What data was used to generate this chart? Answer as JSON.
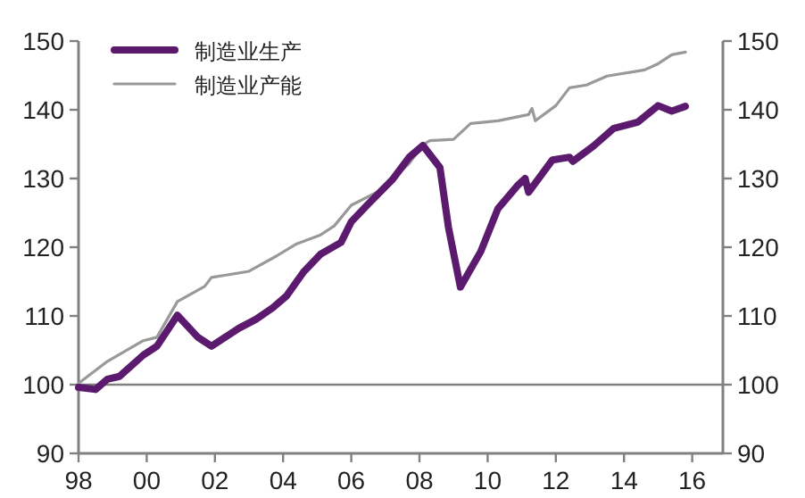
{
  "chart_data": {
    "type": "line",
    "legend": "top left",
    "grid": false,
    "line_style": "solid",
    "marker": "none",
    "xlim": [
      1998,
      2016.9
    ],
    "ylim": [
      90,
      150
    ],
    "y2lim": [
      90,
      150
    ],
    "xticks": [
      {
        "value": 1998,
        "label": "98"
      },
      {
        "value": 2000,
        "label": "00"
      },
      {
        "value": 2002,
        "label": "02"
      },
      {
        "value": 2004,
        "label": "04"
      },
      {
        "value": 2006,
        "label": "06"
      },
      {
        "value": 2008,
        "label": "08"
      },
      {
        "value": 2010,
        "label": "10"
      },
      {
        "value": 2012,
        "label": "12"
      },
      {
        "value": 2014,
        "label": "14"
      },
      {
        "value": 2016,
        "label": "16"
      }
    ],
    "yticks": [
      90,
      100,
      110,
      120,
      130,
      140,
      150
    ],
    "y2ticks": [
      90,
      100,
      110,
      120,
      130,
      140,
      150
    ],
    "ref_lines": [
      {
        "axis": "y",
        "value": 100,
        "color": "#808080"
      }
    ],
    "series": [
      {
        "name": "制造业生产",
        "color": "#5b1a6e",
        "x": [
          1998.0,
          1998.5,
          1998.85,
          1999.2,
          1999.9,
          2000.3,
          2000.9,
          2001.5,
          2001.9,
          2002.3,
          2002.7,
          2003.2,
          2003.7,
          2004.1,
          2004.6,
          2005.1,
          2005.7,
          2006.0,
          2006.5,
          2007.2,
          2007.7,
          2008.1,
          2008.6,
          2008.85,
          2009.2,
          2009.8,
          2010.3,
          2010.9,
          2011.1,
          2011.2,
          2011.9,
          2012.4,
          2012.5,
          2013.1,
          2013.7,
          2014.4,
          2015.0,
          2015.4,
          2015.8
        ],
        "values": [
          99.6,
          99.3,
          100.8,
          101.2,
          104.3,
          105.6,
          110.1,
          106.9,
          105.6,
          106.9,
          108.2,
          109.5,
          111.2,
          112.9,
          116.4,
          119,
          120.7,
          123.7,
          126.3,
          129.8,
          133.1,
          134.8,
          131.6,
          122.9,
          114.2,
          119.4,
          125.6,
          129.1,
          130,
          128,
          132.7,
          133.1,
          132.5,
          134.7,
          137.3,
          138.2,
          140.6,
          139.8,
          140.5
        ]
      },
      {
        "name": "制造业产能",
        "color": "#999999",
        "x": [
          1998.0,
          1998.85,
          1999.9,
          2000.3,
          2000.9,
          2001.7,
          2001.9,
          2003.0,
          2003.8,
          2004.4,
          2005.1,
          2005.5,
          2006.0,
          2006.9,
          2007.7,
          2008.1,
          2008.3,
          2009.0,
          2009.5,
          2010.3,
          2011.2,
          2011.3,
          2011.4,
          2012.0,
          2012.4,
          2012.9,
          2013.5,
          2014.6,
          2015.0,
          2015.4,
          2015.8
        ],
        "values": [
          100.2,
          103.4,
          106.4,
          106.9,
          112.1,
          114.3,
          115.6,
          116.5,
          118.7,
          120.5,
          121.8,
          123.1,
          126.1,
          128.4,
          132.2,
          134.9,
          135.5,
          135.7,
          138,
          138.4,
          139.3,
          140.2,
          138.4,
          140.6,
          143.2,
          143.6,
          144.9,
          145.8,
          146.7,
          148,
          148.4
        ]
      }
    ]
  }
}
